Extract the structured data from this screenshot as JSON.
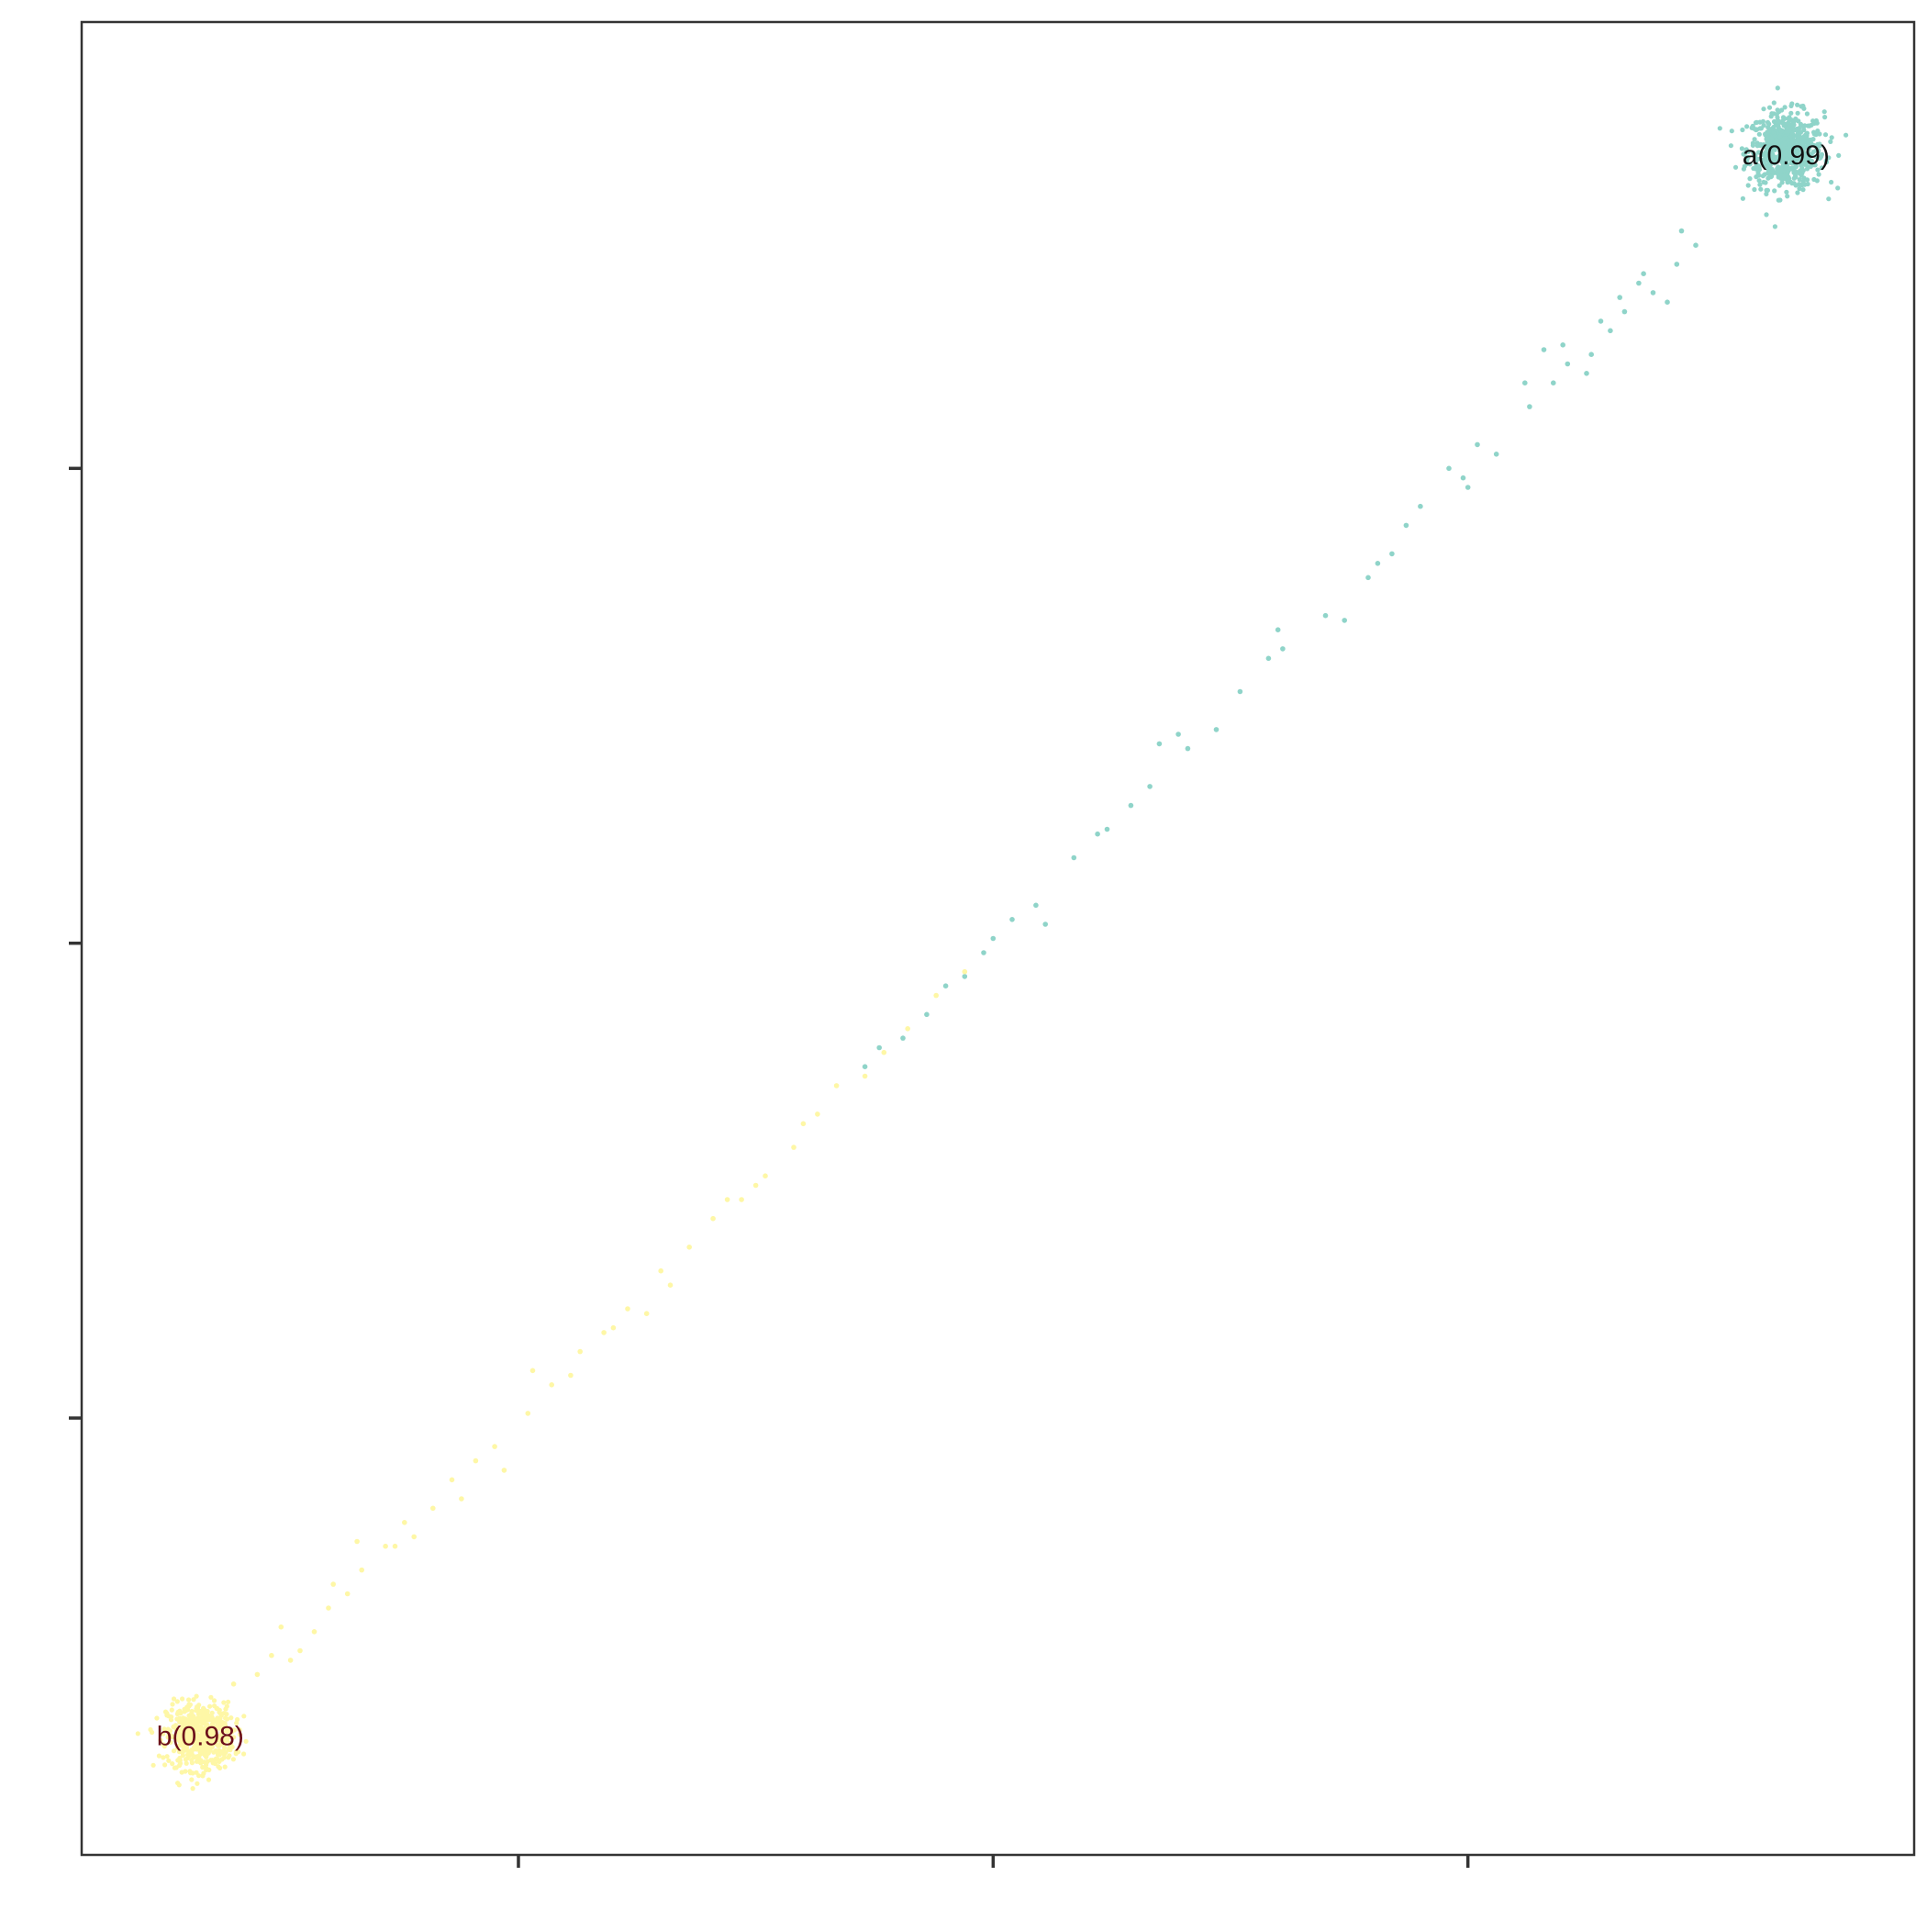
{
  "chart_data": {
    "type": "scatter",
    "title": "",
    "xlabel": "",
    "ylabel": "",
    "xlim": [
      -0.92,
      2.94
    ],
    "ylim": [
      -0.92,
      2.94
    ],
    "x_ticks": [
      0,
      1,
      2
    ],
    "y_ticks": [
      0,
      1,
      2
    ],
    "grid": false,
    "legend": "none",
    "series": [
      {
        "color": "#8fd4c9",
        "center": [
          2.67,
          2.67
        ],
        "spread": 0.04,
        "cluster_count": 650,
        "points": [
          [
            2.37,
            2.41
          ],
          [
            2.42,
            2.35
          ],
          [
            2.48,
            2.47
          ],
          [
            2.3,
            2.29
          ],
          [
            2.33,
            2.33
          ],
          [
            2.32,
            2.36
          ],
          [
            2.25,
            2.2
          ],
          [
            2.2,
            2.26
          ],
          [
            2.21,
            2.22
          ],
          [
            2.18,
            2.18
          ],
          [
            2.13,
            2.13
          ],
          [
            2.12,
            2.18
          ],
          [
            2.06,
            2.03
          ],
          [
            2.02,
            2.05
          ],
          [
            1.99,
            1.98
          ],
          [
            1.9,
            1.92
          ],
          [
            1.87,
            1.88
          ],
          [
            1.84,
            1.82
          ],
          [
            1.81,
            1.8
          ],
          [
            1.79,
            1.77
          ],
          [
            1.7,
            1.69
          ],
          [
            1.74,
            1.68
          ],
          [
            1.61,
            1.62
          ],
          [
            1.58,
            1.6
          ],
          [
            1.52,
            1.53
          ],
          [
            1.47,
            1.45
          ],
          [
            1.41,
            1.41
          ],
          [
            1.39,
            1.44
          ],
          [
            1.35,
            1.42
          ],
          [
            1.33,
            1.33
          ],
          [
            1.29,
            1.29
          ],
          [
            1.24,
            1.24
          ],
          [
            1.17,
            1.18
          ],
          [
            1.09,
            1.08
          ],
          [
            1.11,
            1.04
          ],
          [
            1.04,
            1.05
          ],
          [
            1.0,
            1.01
          ],
          [
            0.9,
            0.91
          ],
          [
            0.94,
            0.93
          ],
          [
            0.86,
            0.85
          ],
          [
            0.81,
            0.8
          ],
          [
            0.73,
            0.74
          ],
          [
            0.76,
            0.78
          ],
          [
            1.6,
            1.66
          ],
          [
            2.0,
            1.96
          ],
          [
            2.16,
            2.25
          ],
          [
            2.26,
            2.24
          ],
          [
            2.36,
            2.39
          ],
          [
            2.44,
            2.43
          ],
          [
            2.39,
            2.37
          ],
          [
            1.22,
            1.23
          ],
          [
            0.98,
            0.98
          ],
          [
            2.45,
            2.5
          ],
          [
            2.28,
            2.31
          ],
          [
            1.96,
            2.0
          ]
        ],
        "label": {
          "text": "a(0.99)",
          "x": 2.67,
          "y": 2.66,
          "color": "#111111"
        }
      },
      {
        "color": "#fef7a6",
        "center": [
          -0.67,
          -0.67
        ],
        "spread": 0.035,
        "cluster_count": 550,
        "points": [
          [
            -0.55,
            -0.54
          ],
          [
            -0.48,
            -0.51
          ],
          [
            -0.43,
            -0.45
          ],
          [
            -0.4,
            -0.4
          ],
          [
            -0.36,
            -0.37
          ],
          [
            -0.33,
            -0.32
          ],
          [
            -0.28,
            -0.27
          ],
          [
            -0.24,
            -0.22
          ],
          [
            -0.22,
            -0.25
          ],
          [
            -0.18,
            -0.19
          ],
          [
            -0.14,
            -0.13
          ],
          [
            -0.09,
            -0.09
          ],
          [
            -0.05,
            -0.06
          ],
          [
            0.02,
            0.01
          ],
          [
            0.07,
            0.07
          ],
          [
            0.13,
            0.14
          ],
          [
            0.18,
            0.18
          ],
          [
            0.23,
            0.23
          ],
          [
            0.27,
            0.22
          ],
          [
            0.3,
            0.31
          ],
          [
            0.36,
            0.36
          ],
          [
            0.41,
            0.42
          ],
          [
            0.47,
            0.46
          ],
          [
            0.52,
            0.51
          ],
          [
            0.58,
            0.57
          ],
          [
            0.63,
            0.64
          ],
          [
            0.67,
            0.7
          ],
          [
            0.73,
            0.72
          ],
          [
            0.77,
            0.77
          ],
          [
            0.82,
            0.82
          ],
          [
            0.88,
            0.89
          ],
          [
            0.94,
            0.94
          ],
          [
            -0.5,
            -0.44
          ],
          [
            -0.34,
            -0.26
          ],
          [
            -0.12,
            -0.17
          ],
          [
            0.11,
            0.09
          ],
          [
            0.32,
            0.28
          ],
          [
            0.5,
            0.49
          ],
          [
            -0.6,
            -0.56
          ],
          [
            -0.46,
            -0.49
          ],
          [
            -0.26,
            -0.27
          ],
          [
            -0.03,
            -0.11
          ],
          [
            0.2,
            0.19
          ],
          [
            0.44,
            0.46
          ],
          [
            0.6,
            0.62
          ],
          [
            -0.52,
            -0.5
          ],
          [
            -0.39,
            -0.35
          ],
          [
            0.03,
            0.1
          ]
        ],
        "label": {
          "text": "b(0.98)",
          "x": -0.67,
          "y": -0.67,
          "color": "#6b0f1a"
        }
      }
    ]
  }
}
